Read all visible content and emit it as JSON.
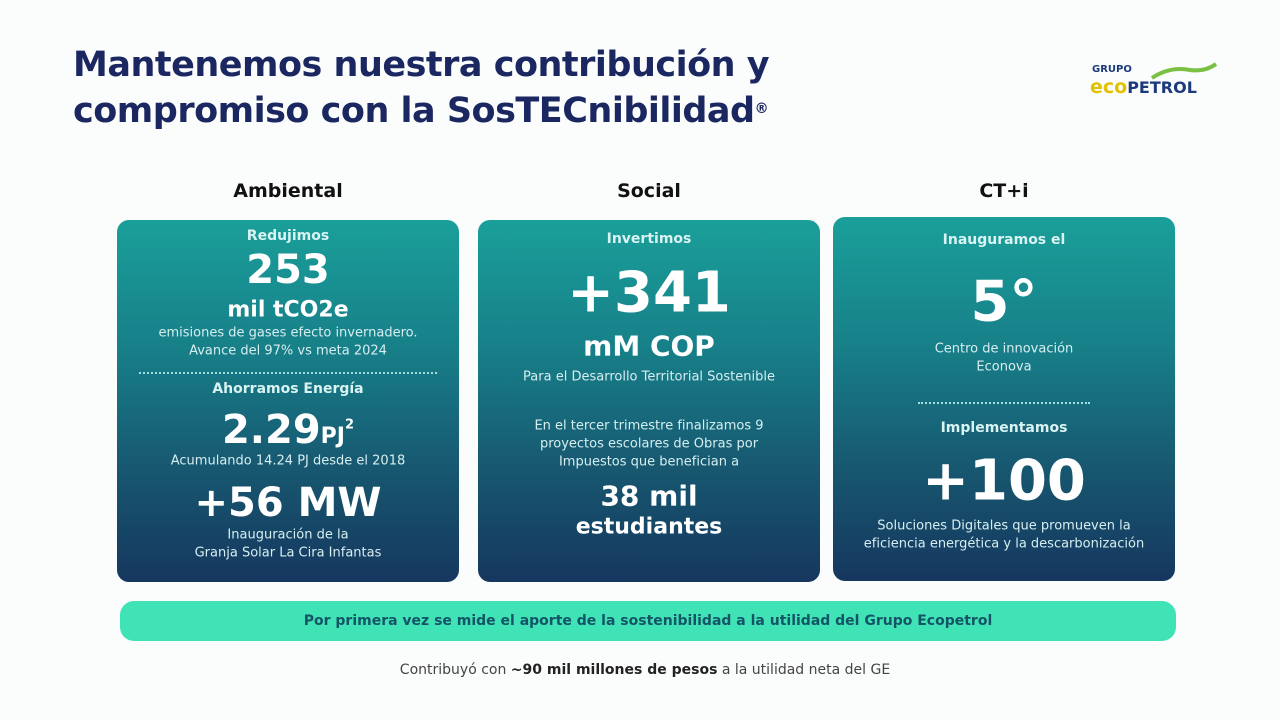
{
  "header": {
    "title_line1": "Mantenemos nuestra contribución y",
    "title_line2": "compromiso con la SosTECnibilidad",
    "registered": "®",
    "logo": {
      "group": "GRUPO",
      "eco": "eco",
      "petrol": "PETROL"
    }
  },
  "columns": [
    {
      "heading": "Ambiental",
      "label1": "Redujimos",
      "value1": "253",
      "unit1": "mil tCO2e",
      "note1a": "emisiones de gases efecto invernadero.",
      "note1b": "Avance del 97% vs meta 2024",
      "label2": "Ahorramos Energía",
      "value2": "2.29",
      "unit2": "PJ",
      "footnote2": "2",
      "note2": "Acumulando  14.24 PJ desde el 2018",
      "value3": "+56 MW",
      "note3a": "Inauguración de la",
      "note3b": "Granja Solar  La Cira Infantas"
    },
    {
      "heading": "Social",
      "label1": "Invertimos",
      "value1": "+341",
      "unit1": "mM COP",
      "note1": "Para el Desarrollo Territorial Sostenible",
      "text_a": "En el tercer trimestre finalizamos 9",
      "text_b": "proyectos escolares de Obras por",
      "text_c": "Impuestos que benefician a",
      "value2": "38 mil",
      "unit2": "estudiantes"
    },
    {
      "heading": "CT+i",
      "label1": "Inauguramos el",
      "value1": "5°",
      "note1a": "Centro de innovación",
      "note1b": "Econova",
      "label2": "Implementamos",
      "value2": "+100",
      "note2a": "Soluciones Digitales que promueven la",
      "note2b": "eficiencia energética y la descarbonización"
    }
  ],
  "banner": "Por primera vez se mide el aporte de la sostenibilidad a la utilidad del Grupo Ecopetrol",
  "footer": {
    "before": "Contribuyó con",
    "highlight": "~90 mil millones de pesos",
    "after": "a la utilidad neta del GE"
  }
}
